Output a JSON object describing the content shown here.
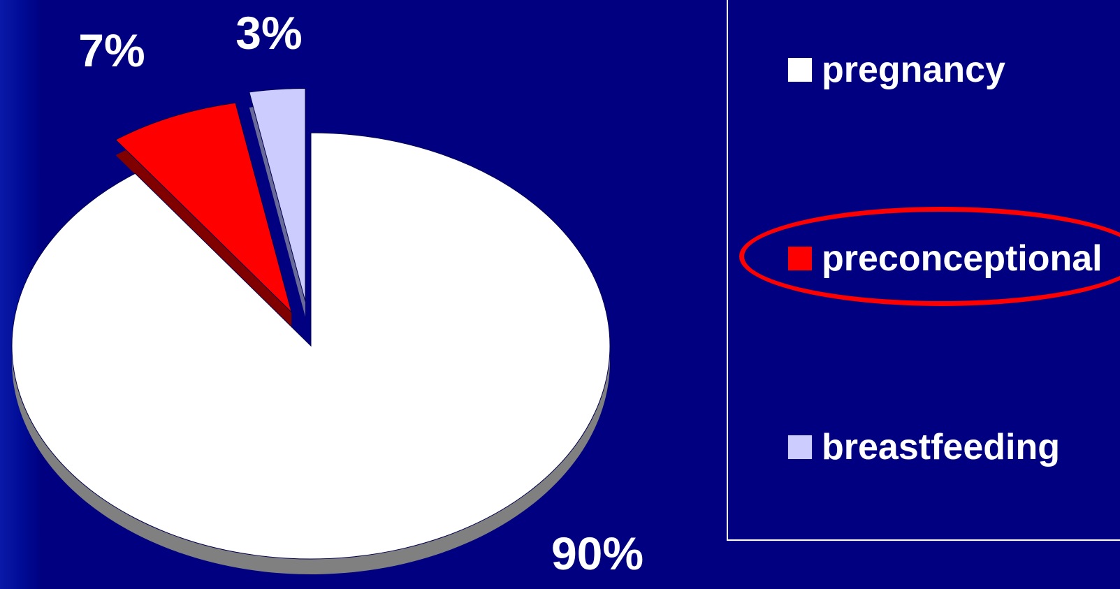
{
  "chart_data": {
    "type": "pie",
    "title": "",
    "categories": [
      "pregnancy",
      "preconceptional",
      "breastfeeding"
    ],
    "values": [
      90,
      7,
      3
    ],
    "data_labels": [
      "90%",
      "7%",
      "3%"
    ],
    "colors": [
      "#ffffff",
      "#ff0000",
      "#ccccff"
    ],
    "style": "3d-exploded",
    "legend_position": "right",
    "highlighted_category": "preconceptional",
    "highlight_color": "#ff0000"
  },
  "legend": {
    "items": [
      {
        "label": "pregnancy",
        "color": "#ffffff"
      },
      {
        "label": "preconceptional",
        "color": "#ff0000"
      },
      {
        "label": "breastfeeding",
        "color": "#ccccff"
      }
    ]
  }
}
